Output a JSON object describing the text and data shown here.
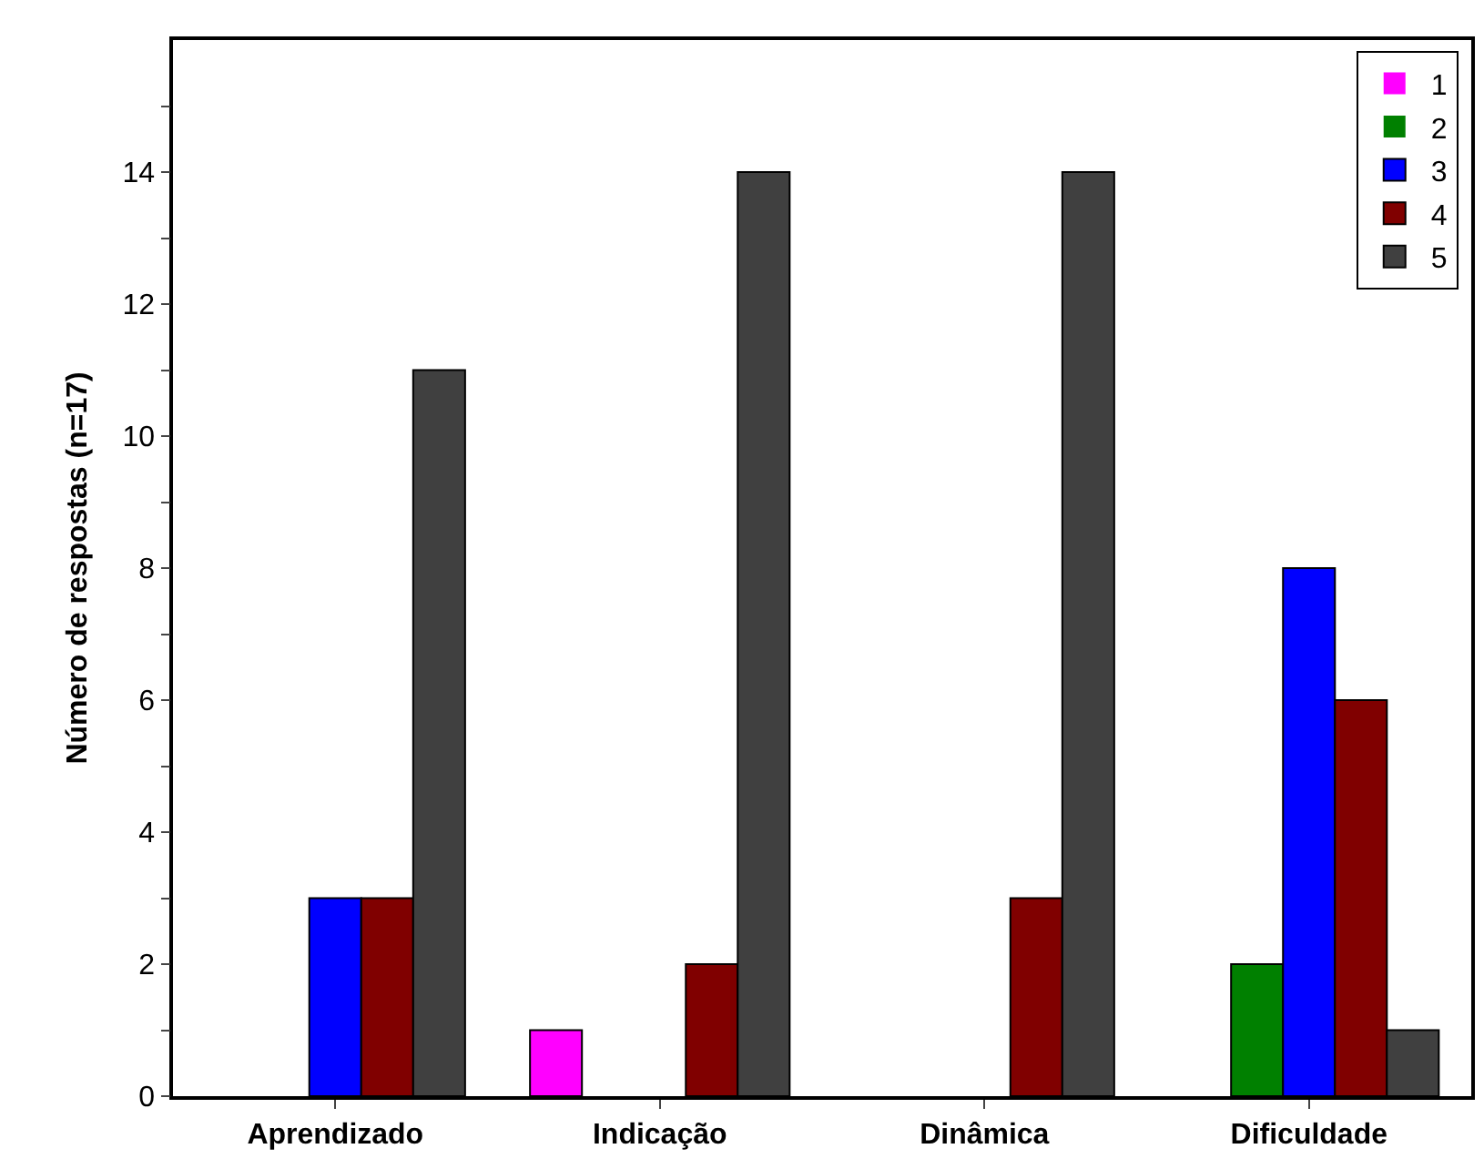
{
  "chart_data": {
    "type": "bar",
    "ylabel": "Número de respostas (n=17)",
    "categories": [
      "Aprendizado",
      "Indicação",
      "Dinâmica",
      "Dificuldade"
    ],
    "series": [
      {
        "name": "1",
        "color": "#ff00ff",
        "values": [
          0,
          1,
          0,
          0
        ]
      },
      {
        "name": "2",
        "color": "#008000",
        "values": [
          0,
          0,
          0,
          2
        ]
      },
      {
        "name": "3",
        "color": "#0000ff",
        "values": [
          3,
          0,
          0,
          8
        ]
      },
      {
        "name": "4",
        "color": "#800000",
        "values": [
          3,
          2,
          3,
          6
        ]
      },
      {
        "name": "5",
        "color": "#404040",
        "values": [
          11,
          14,
          14,
          1
        ]
      }
    ],
    "ylim": [
      0,
      16
    ],
    "yticks": [
      0,
      {
        "value": 1,
        "label": null
      },
      2,
      {
        "value": 3,
        "label": null
      },
      4,
      {
        "value": 5,
        "label": null
      },
      6,
      {
        "value": 7,
        "label": null
      },
      8,
      {
        "value": 9,
        "label": null
      },
      10,
      {
        "value": 11,
        "label": null
      },
      12,
      {
        "value": 13,
        "label": null
      },
      14,
      {
        "value": 15,
        "label": null
      }
    ],
    "legend": "top right"
  }
}
